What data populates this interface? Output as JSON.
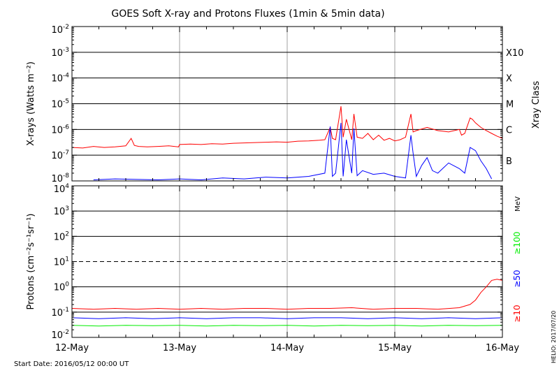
{
  "title": "GOES Soft X-ray and Protons Fluxes   (1min & 5min data)",
  "start_date": "Start Date: 2016/05/12 00:00 UT",
  "credit": "HELIO: 2017/07/20",
  "colors": {
    "red": "#ff0000",
    "blue": "#0000ff",
    "green": "#00ee00",
    "grid": "#a0a0a0",
    "axis": "#000000"
  },
  "chart_data": [
    {
      "type": "line",
      "panel": "xray",
      "ylabel": "X-rays (Watts m⁻²)",
      "yscale": "log",
      "ylim": [
        1e-08,
        0.01
      ],
      "xlim": [
        "2016-05-12",
        "2016-05-16"
      ],
      "x_ticks": [
        "12-May",
        "13-May",
        "14-May",
        "15-May",
        "16-May"
      ],
      "y_ticks": [
        {
          "base": "10",
          "exp": "-2"
        },
        {
          "base": "10",
          "exp": "-3"
        },
        {
          "base": "10",
          "exp": "-4"
        },
        {
          "base": "10",
          "exp": "-5"
        },
        {
          "base": "10",
          "exp": "-6"
        },
        {
          "base": "10",
          "exp": "-7"
        },
        {
          "base": "10",
          "exp": "-8"
        }
      ],
      "right_axis_label": "Xray Class",
      "class_labels": [
        {
          "label": "X10",
          "value": 0.001
        },
        {
          "label": "X",
          "value": 0.0001
        },
        {
          "label": "M",
          "value": 1e-05
        },
        {
          "label": "C",
          "value": 1e-06
        },
        {
          "label": "B",
          "value": 1e-07
        }
      ],
      "series": [
        {
          "color": "red",
          "x": [
            0.0,
            0.1,
            0.2,
            0.3,
            0.4,
            0.5,
            0.55,
            0.58,
            0.62,
            0.7,
            0.8,
            0.9,
            0.99,
            1.0,
            1.1,
            1.2,
            1.3,
            1.4,
            1.5,
            1.6,
            1.7,
            1.8,
            1.9,
            2.0,
            2.1,
            2.2,
            2.3,
            2.35,
            2.4,
            2.42,
            2.45,
            2.5,
            2.52,
            2.55,
            2.6,
            2.62,
            2.65,
            2.7,
            2.75,
            2.8,
            2.85,
            2.9,
            2.95,
            3.0,
            3.05,
            3.1,
            3.15,
            3.17,
            3.2,
            3.3,
            3.4,
            3.5,
            3.6,
            3.62,
            3.65,
            3.7,
            3.72,
            3.75,
            3.8,
            3.85,
            3.9,
            3.95,
            4.0
          ],
          "y": [
            2e-07,
            1.9e-07,
            2.2e-07,
            2e-07,
            2.1e-07,
            2.3e-07,
            4.5e-07,
            2.4e-07,
            2.2e-07,
            2.1e-07,
            2.2e-07,
            2.3e-07,
            2.1e-07,
            2.6e-07,
            2.7e-07,
            2.6e-07,
            2.8e-07,
            2.7e-07,
            2.9e-07,
            3e-07,
            3.1e-07,
            3.2e-07,
            3.3e-07,
            3.2e-07,
            3.5e-07,
            3.6e-07,
            3.8e-07,
            4e-07,
            1.2e-06,
            4.5e-07,
            4e-07,
            8e-06,
            5e-07,
            2.5e-06,
            4e-07,
            4e-06,
            5e-07,
            4.5e-07,
            7e-07,
            4e-07,
            6e-07,
            3.8e-07,
            4.5e-07,
            3.6e-07,
            4e-07,
            5e-07,
            4e-06,
            8e-07,
            9e-07,
            1.2e-06,
            9e-07,
            8e-07,
            1e-06,
            6e-07,
            7e-07,
            2.8e-06,
            2.5e-06,
            1.8e-06,
            1.2e-06,
            9e-07,
            7e-07,
            5.5e-07,
            4.5e-07
          ]
        },
        {
          "color": "blue",
          "x": [
            0.2,
            0.4,
            0.8,
            1.0,
            1.2,
            1.4,
            1.6,
            1.8,
            2.0,
            2.2,
            2.35,
            2.4,
            2.42,
            2.45,
            2.5,
            2.52,
            2.55,
            2.6,
            2.62,
            2.65,
            2.7,
            2.8,
            2.9,
            3.0,
            3.1,
            3.15,
            3.17,
            3.2,
            3.25,
            3.3,
            3.35,
            3.4,
            3.5,
            3.6,
            3.65,
            3.7,
            3.75,
            3.8,
            3.85,
            3.9
          ],
          "y": [
            1.1e-08,
            1.2e-08,
            1.1e-08,
            1.2e-08,
            1.1e-08,
            1.3e-08,
            1.2e-08,
            1.4e-08,
            1.3e-08,
            1.5e-08,
            2e-08,
            1.3e-06,
            1.5e-08,
            2e-08,
            1.8e-06,
            1.5e-08,
            4e-07,
            2e-08,
            1.1e-06,
            1.6e-08,
            2.5e-08,
            1.8e-08,
            2e-08,
            1.5e-08,
            1.3e-08,
            6e-07,
            1.2e-07,
            1.5e-08,
            4e-08,
            8e-08,
            2.5e-08,
            2e-08,
            5e-08,
            3e-08,
            2e-08,
            2e-07,
            1.5e-07,
            6e-08,
            3e-08,
            1.2e-08
          ]
        }
      ]
    },
    {
      "type": "line",
      "panel": "protons",
      "ylabel": "Protons (cm⁻²s⁻¹sr⁻¹)",
      "yscale": "log",
      "ylim": [
        0.01,
        10000
      ],
      "xlim": [
        "2016-05-12",
        "2016-05-16"
      ],
      "x_ticks": [
        "12-May",
        "13-May",
        "14-May",
        "15-May",
        "16-May"
      ],
      "y_ticks": [
        {
          "base": "10",
          "exp": "4"
        },
        {
          "base": "10",
          "exp": "3"
        },
        {
          "base": "10",
          "exp": "2"
        },
        {
          "base": "10",
          "exp": "1"
        },
        {
          "base": "10",
          "exp": "0"
        },
        {
          "base": "10",
          "exp": "-1"
        },
        {
          "base": "10",
          "exp": "-2"
        }
      ],
      "threshold": 10,
      "right_unit": "MeV",
      "series": [
        {
          "name": "≥10",
          "color": "red",
          "x": [
            0.0,
            0.2,
            0.4,
            0.6,
            0.8,
            1.0,
            1.2,
            1.4,
            1.6,
            1.8,
            2.0,
            2.2,
            2.4,
            2.6,
            2.8,
            3.0,
            3.2,
            3.4,
            3.6,
            3.7,
            3.75,
            3.8,
            3.85,
            3.9,
            3.95,
            4.0
          ],
          "y": [
            0.14,
            0.13,
            0.14,
            0.13,
            0.14,
            0.13,
            0.14,
            0.13,
            0.14,
            0.14,
            0.13,
            0.14,
            0.14,
            0.15,
            0.13,
            0.14,
            0.14,
            0.13,
            0.15,
            0.2,
            0.3,
            0.6,
            1.0,
            1.8,
            2.0,
            1.8
          ]
        },
        {
          "name": "≥50",
          "color": "blue",
          "x": [
            0.0,
            0.25,
            0.5,
            0.75,
            1.0,
            1.25,
            1.5,
            1.75,
            2.0,
            2.25,
            2.5,
            2.75,
            3.0,
            3.25,
            3.5,
            3.75,
            4.0
          ],
          "y": [
            0.06,
            0.055,
            0.06,
            0.055,
            0.06,
            0.055,
            0.06,
            0.06,
            0.055,
            0.06,
            0.06,
            0.055,
            0.06,
            0.055,
            0.06,
            0.055,
            0.06
          ]
        },
        {
          "name": "≥100",
          "color": "green",
          "x": [
            0.0,
            0.25,
            0.5,
            0.75,
            1.0,
            1.25,
            1.5,
            1.75,
            2.0,
            2.25,
            2.5,
            2.75,
            3.0,
            3.25,
            3.5,
            3.75,
            4.0
          ],
          "y": [
            0.03,
            0.028,
            0.03,
            0.029,
            0.03,
            0.028,
            0.03,
            0.029,
            0.03,
            0.028,
            0.03,
            0.029,
            0.03,
            0.028,
            0.03,
            0.029,
            0.03
          ]
        }
      ]
    }
  ]
}
